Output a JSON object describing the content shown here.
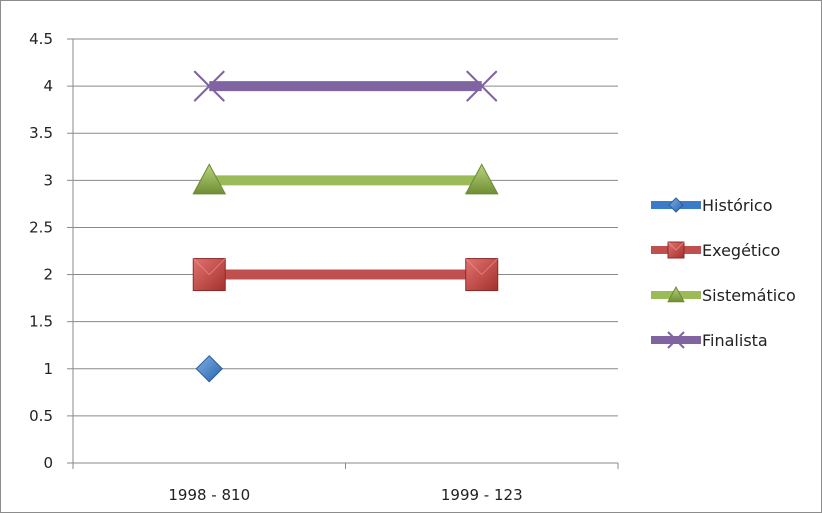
{
  "chart_data": {
    "type": "line",
    "categories": [
      "1998 - 810",
      "1999 - 123"
    ],
    "ylim": [
      0,
      4.5
    ],
    "yticks": [
      "0",
      "0.5",
      "1",
      "1.5",
      "2",
      "2.5",
      "3",
      "3.5",
      "4",
      "4.5"
    ],
    "grid": true,
    "legend_position": "right",
    "series": [
      {
        "name": "Histórico",
        "values": [
          1,
          null
        ],
        "color": "#3a7cc9",
        "marker": "diamond"
      },
      {
        "name": "Exegético",
        "values": [
          2,
          2
        ],
        "color": "#c0504d",
        "marker": "square"
      },
      {
        "name": "Sistemático",
        "values": [
          3,
          3
        ],
        "color": "#9bbb59",
        "marker": "triangle"
      },
      {
        "name": "Finalista",
        "values": [
          4,
          4
        ],
        "color": "#8064a2",
        "marker": "x"
      }
    ]
  }
}
